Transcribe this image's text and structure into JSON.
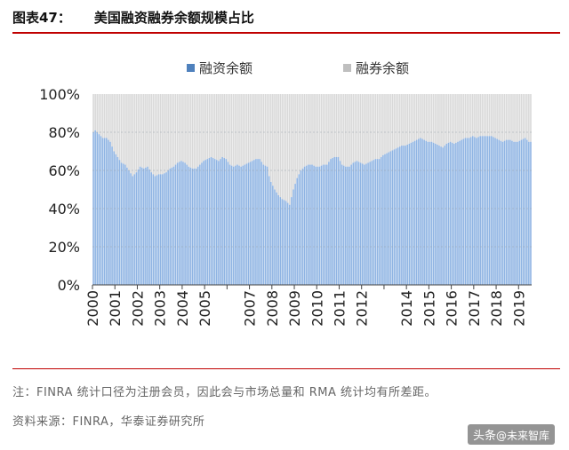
{
  "header": {
    "figure_label": "图表47：",
    "figure_title": "美国融资融券余额规模占比"
  },
  "chart_data": {
    "type": "bar",
    "stacked": true,
    "legend_position": "top",
    "ylim": [
      0,
      100
    ],
    "yticks": [
      "0%",
      "20%",
      "40%",
      "60%",
      "80%",
      "100%"
    ],
    "x_tick_labels": [
      "2000",
      "2001",
      "2002",
      "2003",
      "2004",
      "2005",
      "2007",
      "2008",
      "2009",
      "2010",
      "2011",
      "2012",
      "2014",
      "2015",
      "2016",
      "2017",
      "2018",
      "2019"
    ],
    "grid": true,
    "colors": {
      "margin_loan": "#8fb4e3",
      "short_balance": "#d9d9d9",
      "legend_blue": "#4f81bd",
      "legend_gray": "#bfbfbf"
    },
    "x_tick_at_month": [
      0,
      12,
      24,
      36,
      48,
      60,
      72,
      84,
      96,
      108,
      120,
      132,
      144,
      156,
      168,
      180,
      192,
      204,
      216,
      228
    ],
    "x_tick_label_at_month": [
      0,
      12,
      24,
      36,
      48,
      60,
      84,
      96,
      108,
      120,
      132,
      144,
      168,
      180,
      192,
      204,
      216,
      228
    ],
    "anchors_month": [
      0,
      1,
      3,
      5,
      7,
      9,
      11,
      13,
      15,
      17,
      19,
      21,
      23,
      25,
      27,
      29,
      31,
      33,
      35,
      37,
      39,
      41,
      43,
      45,
      47,
      49,
      51,
      53,
      55,
      57,
      59,
      61,
      63,
      65,
      67,
      69,
      71,
      73,
      75,
      77,
      79,
      81,
      83,
      85,
      87,
      89,
      91,
      93,
      94,
      95,
      97,
      99,
      101,
      103,
      105,
      107,
      109,
      111,
      113,
      115,
      117,
      119,
      121,
      123,
      125,
      127,
      129,
      131,
      133,
      135,
      137,
      139,
      141,
      143,
      145,
      147,
      149,
      151,
      153,
      155,
      157,
      159,
      161,
      163,
      165,
      167,
      169,
      171,
      173,
      175,
      177,
      179,
      181,
      183,
      185,
      187,
      189,
      191,
      193,
      195,
      197,
      199,
      201,
      203,
      205,
      207,
      209,
      211,
      213,
      215,
      217,
      219,
      221,
      223,
      225,
      227,
      229,
      231,
      233
    ],
    "anchors_value": [
      80,
      81,
      79,
      77,
      77,
      75,
      70,
      67,
      64,
      63,
      60,
      57,
      59,
      62,
      61,
      62,
      59,
      57,
      58,
      58,
      59,
      61,
      62,
      64,
      65,
      64,
      62,
      61,
      61,
      63,
      65,
      66,
      67,
      66,
      65,
      67,
      66,
      63,
      62,
      63,
      62,
      63,
      64,
      65,
      66,
      66,
      63,
      62,
      57,
      54,
      50,
      47,
      45,
      44,
      42,
      50,
      56,
      60,
      62,
      63,
      63,
      62,
      62,
      63,
      63,
      66,
      67,
      67,
      63,
      62,
      62,
      64,
      65,
      64,
      63,
      64,
      65,
      66,
      66,
      68,
      69,
      70,
      71,
      72,
      73,
      73,
      74,
      75,
      76,
      77,
      76,
      75,
      75,
      74,
      73,
      72,
      74,
      75,
      74,
      75,
      76,
      77,
      77,
      78,
      77,
      78,
      78,
      78,
      78,
      77,
      76,
      75,
      76,
      76,
      75,
      75,
      76,
      77,
      75
    ]
  },
  "legend": [
    {
      "label": "融资余额",
      "color": "#4f81bd"
    },
    {
      "label": "融券余额",
      "color": "#bfbfbf"
    }
  ],
  "notes": {
    "note1": "注：FINRA 统计口径为注册会员，因此会与市场总量和 RMA 统计均有所差距。",
    "source": "资料来源：FINRA，华泰证券研究所"
  },
  "watermark": {
    "prefix": "头条",
    "handle": "@未来智库"
  }
}
